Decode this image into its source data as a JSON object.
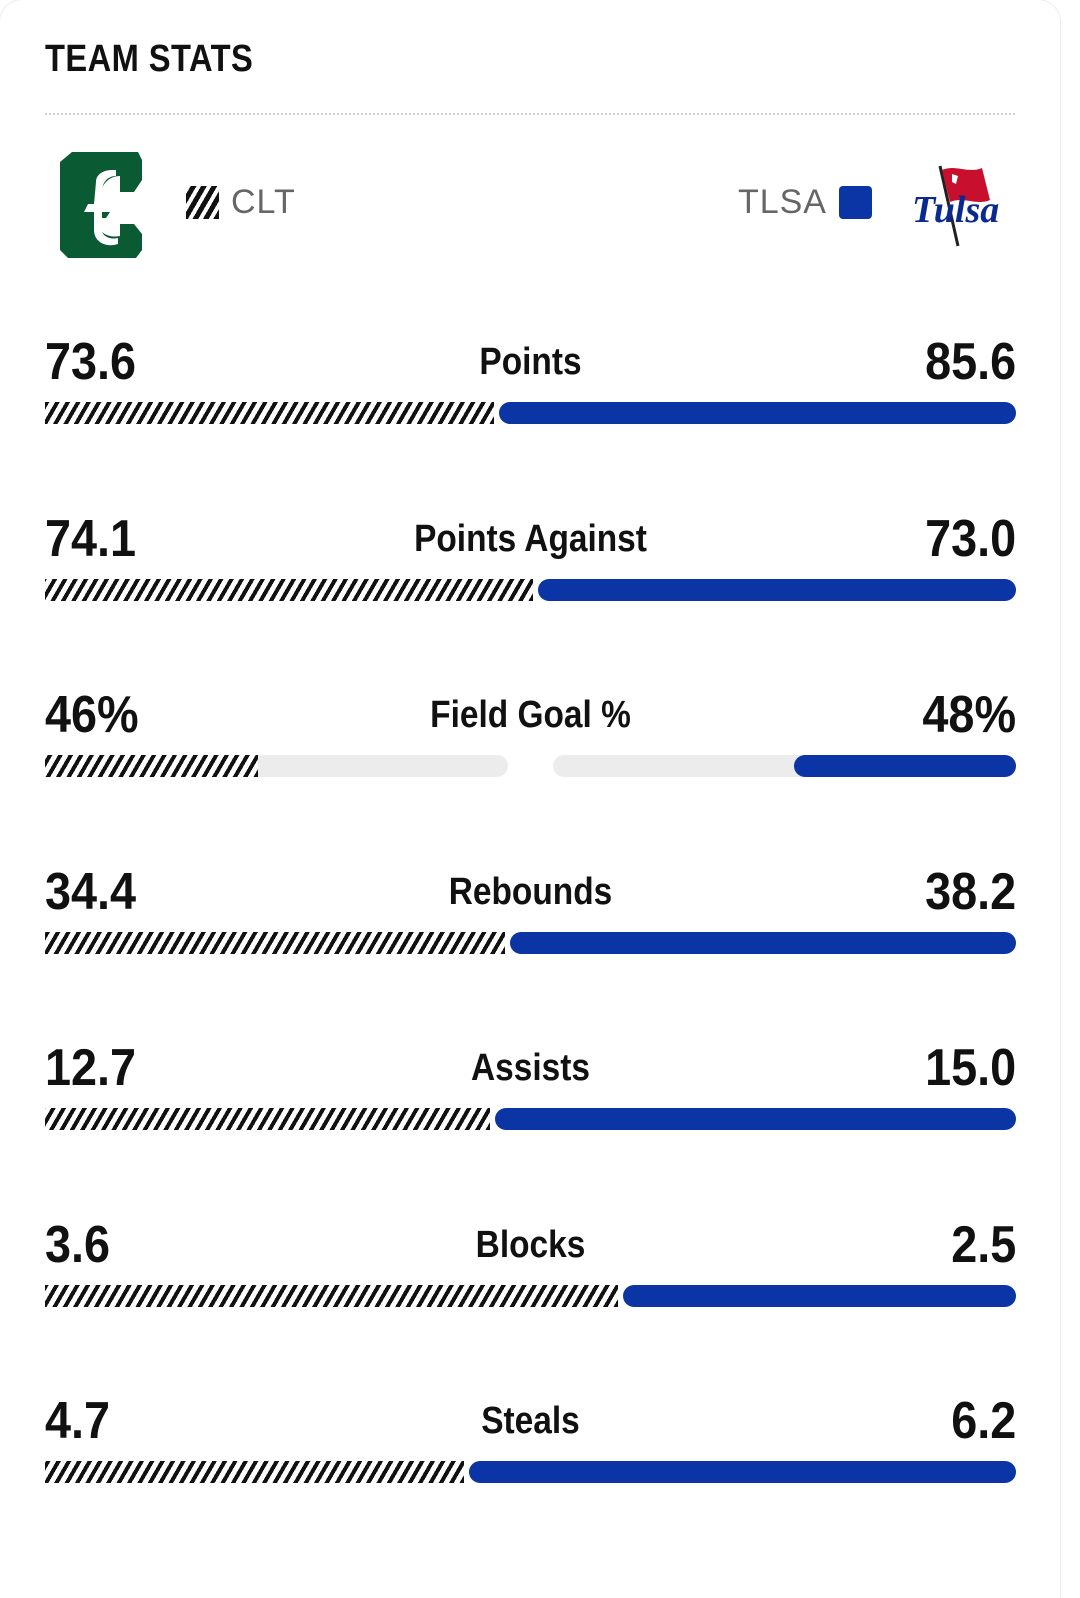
{
  "header": {
    "title": "TEAM STATS"
  },
  "teams": {
    "left": {
      "abbr": "CLT",
      "pattern": "hatched-black"
    },
    "right": {
      "abbr": "TLSA",
      "color": "#0b35a4",
      "logo_text": "Tulsa"
    }
  },
  "stats": [
    {
      "label": "Points",
      "left": "73.6",
      "right": "85.6",
      "mode": "split",
      "left_share": 0.462
    },
    {
      "label": "Points Against",
      "left": "74.1",
      "right": "73.0",
      "mode": "split",
      "left_share": 0.503
    },
    {
      "label": "Field Goal %",
      "left": "46%",
      "right": "48%",
      "mode": "percent",
      "left_pct": 0.46,
      "right_pct": 0.48
    },
    {
      "label": "Rebounds",
      "left": "34.4",
      "right": "38.2",
      "mode": "split",
      "left_share": 0.474
    },
    {
      "label": "Assists",
      "left": "12.7",
      "right": "15.0",
      "mode": "split",
      "left_share": 0.458
    },
    {
      "label": "Blocks",
      "left": "3.6",
      "right": "2.5",
      "mode": "split",
      "left_share": 0.59
    },
    {
      "label": "Steals",
      "left": "4.7",
      "right": "6.2",
      "mode": "split",
      "left_share": 0.431
    }
  ]
}
